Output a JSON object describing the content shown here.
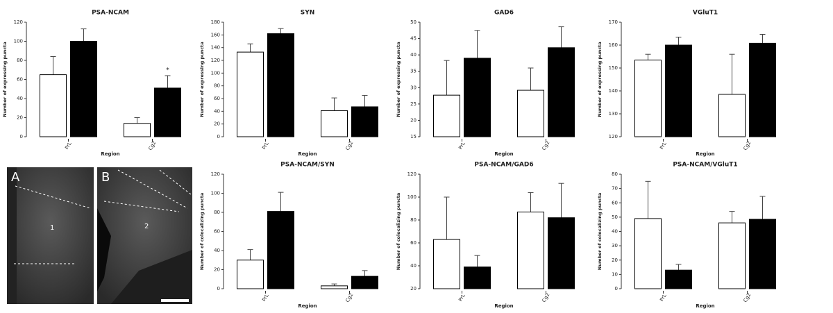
{
  "chart_data": [
    {
      "type": "bar",
      "title": "PSA-NCAM",
      "x_label": "Region",
      "y_label": "Number of expressing puncta",
      "categories": [
        "PrL",
        "Cg2"
      ],
      "series": [
        {
          "color": "#ffffff",
          "values": [
            65,
            14
          ],
          "errors": [
            19,
            6
          ]
        },
        {
          "color": "#000000",
          "values": [
            100,
            51
          ],
          "errors": [
            13,
            13
          ]
        }
      ],
      "ylim": [
        0,
        120
      ],
      "yticks": [
        0,
        20,
        40,
        60,
        80,
        100,
        120
      ],
      "annotation": "*"
    },
    {
      "type": "bar",
      "title": "SYN",
      "x_label": "Region",
      "y_label": "Number of expressing puncta",
      "categories": [
        "PrL",
        "Cg2"
      ],
      "series": [
        {
          "color": "#ffffff",
          "values": [
            133,
            41
          ],
          "errors": [
            13,
            20
          ]
        },
        {
          "color": "#000000",
          "values": [
            162,
            47
          ],
          "errors": [
            8,
            18
          ]
        }
      ],
      "ylim": [
        0,
        180
      ],
      "yticks": [
        0,
        20,
        40,
        60,
        80,
        100,
        120,
        140,
        160,
        180
      ]
    },
    {
      "type": "bar",
      "title": "GAD6",
      "x_label": "Region",
      "y_label": "Number of expressing puncta",
      "categories": [
        "PrL",
        "Cg2"
      ],
      "series": [
        {
          "color": "#ffffff",
          "values": [
            27.7,
            29.2
          ],
          "errors": [
            10.6,
            6.8
          ]
        },
        {
          "color": "#000000",
          "values": [
            39,
            42.2
          ],
          "errors": [
            8.5,
            6.4
          ]
        }
      ],
      "ylim": [
        15,
        50
      ],
      "yticks": [
        15,
        20,
        25,
        30,
        35,
        40,
        45,
        50
      ]
    },
    {
      "type": "bar",
      "title": "VGluT1",
      "x_label": "Region",
      "y_label": "Number of expressing puncta",
      "categories": [
        "PrL",
        "Cg2"
      ],
      "series": [
        {
          "color": "#ffffff",
          "values": [
            153.5,
            138.5
          ],
          "errors": [
            2.5,
            17.5
          ]
        },
        {
          "color": "#000000",
          "values": [
            160,
            160.8
          ],
          "errors": [
            3.5,
            3.9
          ]
        }
      ],
      "ylim": [
        120,
        170
      ],
      "yticks": [
        120,
        130,
        140,
        150,
        160,
        170
      ]
    },
    {
      "type": "bar",
      "title": "PSA-NCAM/SYN",
      "x_label": "Region",
      "y_label": "Number of colocalizing puncta",
      "categories": [
        "PrL",
        "Cg2"
      ],
      "series": [
        {
          "color": "#ffffff",
          "values": [
            30,
            3
          ],
          "errors": [
            11,
            2
          ]
        },
        {
          "color": "#000000",
          "values": [
            81,
            13
          ],
          "errors": [
            20,
            6
          ]
        }
      ],
      "ylim": [
        0,
        120
      ],
      "yticks": [
        0,
        20,
        40,
        60,
        80,
        100,
        120
      ]
    },
    {
      "type": "bar",
      "title": "PSA-NCAM/GAD6",
      "x_label": "Region",
      "y_label": "Number of colocalizing puncta",
      "categories": [
        "PrL",
        "Cg2"
      ],
      "series": [
        {
          "color": "#ffffff",
          "values": [
            63,
            87
          ],
          "errors": [
            37,
            17
          ]
        },
        {
          "color": "#000000",
          "values": [
            39,
            82
          ],
          "errors": [
            10,
            30
          ]
        }
      ],
      "ylim": [
        20,
        120
      ],
      "yticks": [
        20,
        40,
        60,
        80,
        100,
        120
      ]
    },
    {
      "type": "bar",
      "title": "PSA-NCAM/VGluT1",
      "x_label": "Region",
      "y_label": "Number of colocalizing puncta",
      "categories": [
        "PrL",
        "Cg2"
      ],
      "series": [
        {
          "color": "#ffffff",
          "values": [
            49,
            46
          ],
          "errors": [
            26,
            8
          ]
        },
        {
          "color": "#000000",
          "values": [
            13,
            48.5
          ],
          "errors": [
            4,
            16
          ]
        }
      ],
      "ylim": [
        0,
        80
      ],
      "yticks": [
        0,
        10,
        20,
        30,
        40,
        50,
        60,
        70,
        80
      ]
    }
  ],
  "images": [
    {
      "label": "A",
      "region": "1"
    },
    {
      "label": "B",
      "region": "2"
    }
  ]
}
